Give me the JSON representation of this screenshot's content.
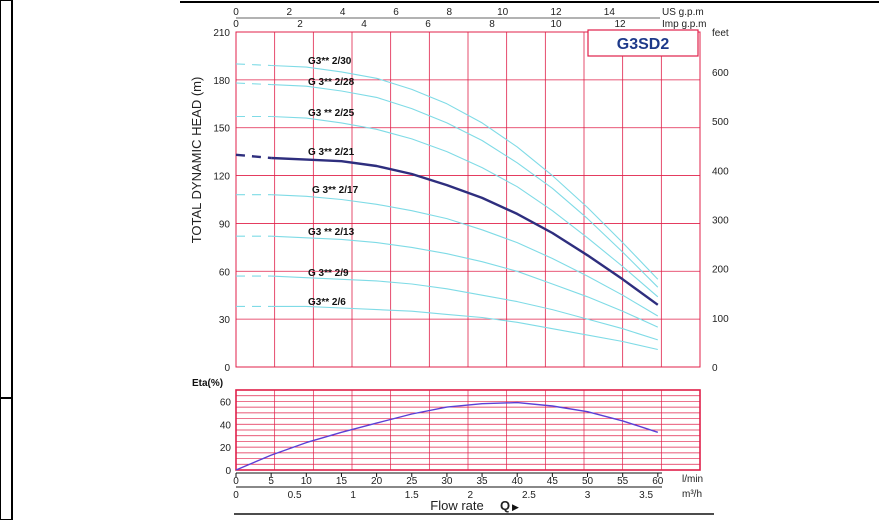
{
  "page": {
    "left_border_color": "#000000"
  },
  "chart_data": [
    {
      "type": "line",
      "title": "G3SD2",
      "ylabel": "TOTAL DYNAMIC HEAD (m)",
      "y2label": "feet",
      "x_unit": "l/min",
      "top_axis_us_label": "US g.p.m",
      "top_axis_imp_label": "Imp g.p.m",
      "xlim": [
        0,
        60
      ],
      "ylim": [
        0,
        210
      ],
      "y_ticks": [
        0,
        30,
        60,
        90,
        120,
        150,
        180,
        210
      ],
      "y2_ticks": [
        0,
        100,
        200,
        300,
        400,
        500,
        600
      ],
      "top_us_ticks": [
        0,
        2,
        4,
        6,
        8,
        10,
        12,
        14
      ],
      "top_imp_ticks": [
        0,
        2,
        4,
        6,
        8,
        10,
        12
      ],
      "grid": true,
      "colors": {
        "grid": "#e0204a",
        "curve": "#7fdbe6",
        "highlight": "#2e2e7e",
        "badge_text": "#1e3a8a"
      },
      "series": [
        {
          "name": "G3** 2/30",
          "x": [
            0,
            5,
            10,
            15,
            20,
            25,
            30,
            35,
            40,
            45,
            50,
            55,
            60
          ],
          "values": [
            190,
            189,
            188,
            185,
            181,
            174,
            165,
            153,
            138,
            120,
            100,
            78,
            55
          ],
          "dashed_until": 5
        },
        {
          "name": "G 3** 2/28",
          "x": [
            0,
            5,
            10,
            15,
            20,
            25,
            30,
            35,
            40,
            45,
            50,
            55,
            60
          ],
          "values": [
            178,
            177,
            176,
            173,
            169,
            162,
            153,
            142,
            128,
            112,
            93,
            72,
            50
          ],
          "dashed_until": 5
        },
        {
          "name": "G3 ** 2/25",
          "x": [
            0,
            5,
            10,
            15,
            20,
            25,
            30,
            35,
            40,
            45,
            50,
            55,
            60
          ],
          "values": [
            157,
            157,
            156,
            153,
            149,
            143,
            135,
            125,
            113,
            98,
            81,
            63,
            44
          ],
          "dashed_until": 5
        },
        {
          "name": "G 3** 2/21",
          "x": [
            0,
            5,
            10,
            15,
            20,
            25,
            30,
            35,
            40,
            45,
            50,
            55,
            60
          ],
          "values": [
            133,
            131,
            130,
            129,
            126,
            121,
            114,
            106,
            96,
            84,
            70,
            55,
            39
          ],
          "dashed_until": 5,
          "highlight": true
        },
        {
          "name": "G 3** 2/17",
          "x": [
            0,
            5,
            10,
            15,
            20,
            25,
            30,
            35,
            40,
            45,
            50,
            55,
            60
          ],
          "values": [
            108,
            108,
            107,
            105,
            102,
            98,
            93,
            86,
            78,
            68,
            57,
            45,
            32
          ],
          "dashed_until": 5
        },
        {
          "name": "G3 ** 2/13",
          "x": [
            0,
            5,
            10,
            15,
            20,
            25,
            30,
            35,
            40,
            45,
            50,
            55,
            60
          ],
          "values": [
            82,
            82,
            81,
            80,
            78,
            75,
            71,
            66,
            60,
            52,
            44,
            35,
            25
          ],
          "dashed_until": 5
        },
        {
          "name": "G 3** 2/9",
          "x": [
            0,
            5,
            10,
            15,
            20,
            25,
            30,
            35,
            40,
            45,
            50,
            55,
            60
          ],
          "values": [
            57,
            57,
            56,
            55,
            54,
            52,
            49,
            45,
            41,
            36,
            30,
            24,
            17
          ],
          "dashed_until": 5
        },
        {
          "name": "G3** 2/6",
          "x": [
            0,
            5,
            10,
            15,
            20,
            25,
            30,
            35,
            40,
            45,
            50,
            55,
            60
          ],
          "values": [
            38,
            38,
            38,
            37,
            36,
            35,
            33,
            31,
            28,
            24,
            20,
            16,
            11
          ],
          "dashed_until": 5
        }
      ]
    },
    {
      "type": "line",
      "ylabel": "Eta(%)",
      "xlabel": "Flow rate",
      "xlabel_suffix": "Q",
      "x_unit": "l/min",
      "x2_unit": "m³/h",
      "xlim": [
        0,
        60
      ],
      "ylim": [
        0,
        70
      ],
      "y_ticks": [
        0,
        20,
        40,
        60
      ],
      "x_ticks": [
        0,
        5,
        10,
        15,
        20,
        25,
        30,
        35,
        40,
        45,
        50,
        55,
        60
      ],
      "x2_ticks": [
        "0",
        "0.5",
        "1",
        "1.5",
        "2",
        "2.5",
        "3",
        "3.5"
      ],
      "grid": true,
      "colors": {
        "grid": "#e0204a",
        "curve": "#5b3fd6"
      },
      "series": [
        {
          "name": "Eta",
          "x": [
            0,
            5,
            10,
            15,
            20,
            25,
            30,
            35,
            40,
            45,
            50,
            55,
            60
          ],
          "values": [
            0,
            13,
            24,
            33,
            41,
            49,
            55,
            58,
            59,
            56,
            51,
            43,
            33
          ]
        }
      ]
    }
  ]
}
